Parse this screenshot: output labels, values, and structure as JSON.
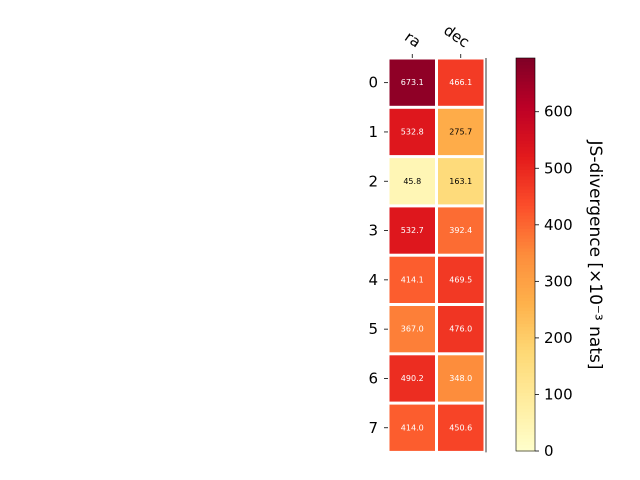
{
  "chart_data": {
    "type": "heatmap",
    "title": "",
    "columns": [
      "ra",
      "dec"
    ],
    "rows": [
      "0",
      "1",
      "2",
      "3",
      "4",
      "5",
      "6",
      "7"
    ],
    "values": [
      [
        673.1,
        466.1
      ],
      [
        532.8,
        275.7
      ],
      [
        45.8,
        163.1
      ],
      [
        532.7,
        392.4
      ],
      [
        414.1,
        469.5
      ],
      [
        367.0,
        476.0
      ],
      [
        490.2,
        348.0
      ],
      [
        414.0,
        450.6
      ]
    ],
    "value_labels": [
      [
        "673.1",
        "466.1"
      ],
      [
        "532.8",
        "275.7"
      ],
      [
        "45.8",
        "163.1"
      ],
      [
        "532.7",
        "392.4"
      ],
      [
        "414.1",
        "469.5"
      ],
      [
        "367.0",
        "476.0"
      ],
      [
        "490.2",
        "348.0"
      ],
      [
        "414.0",
        "450.6"
      ]
    ],
    "colormap": "YlOrRd",
    "colorbar": {
      "label": "JS-divergence [×10⁻³ nats]",
      "range": [
        0,
        695
      ],
      "ticks": [
        0,
        100,
        200,
        300,
        400,
        500,
        600
      ],
      "tick_labels": [
        "0",
        "100",
        "200",
        "300",
        "400",
        "500",
        "600"
      ]
    }
  }
}
